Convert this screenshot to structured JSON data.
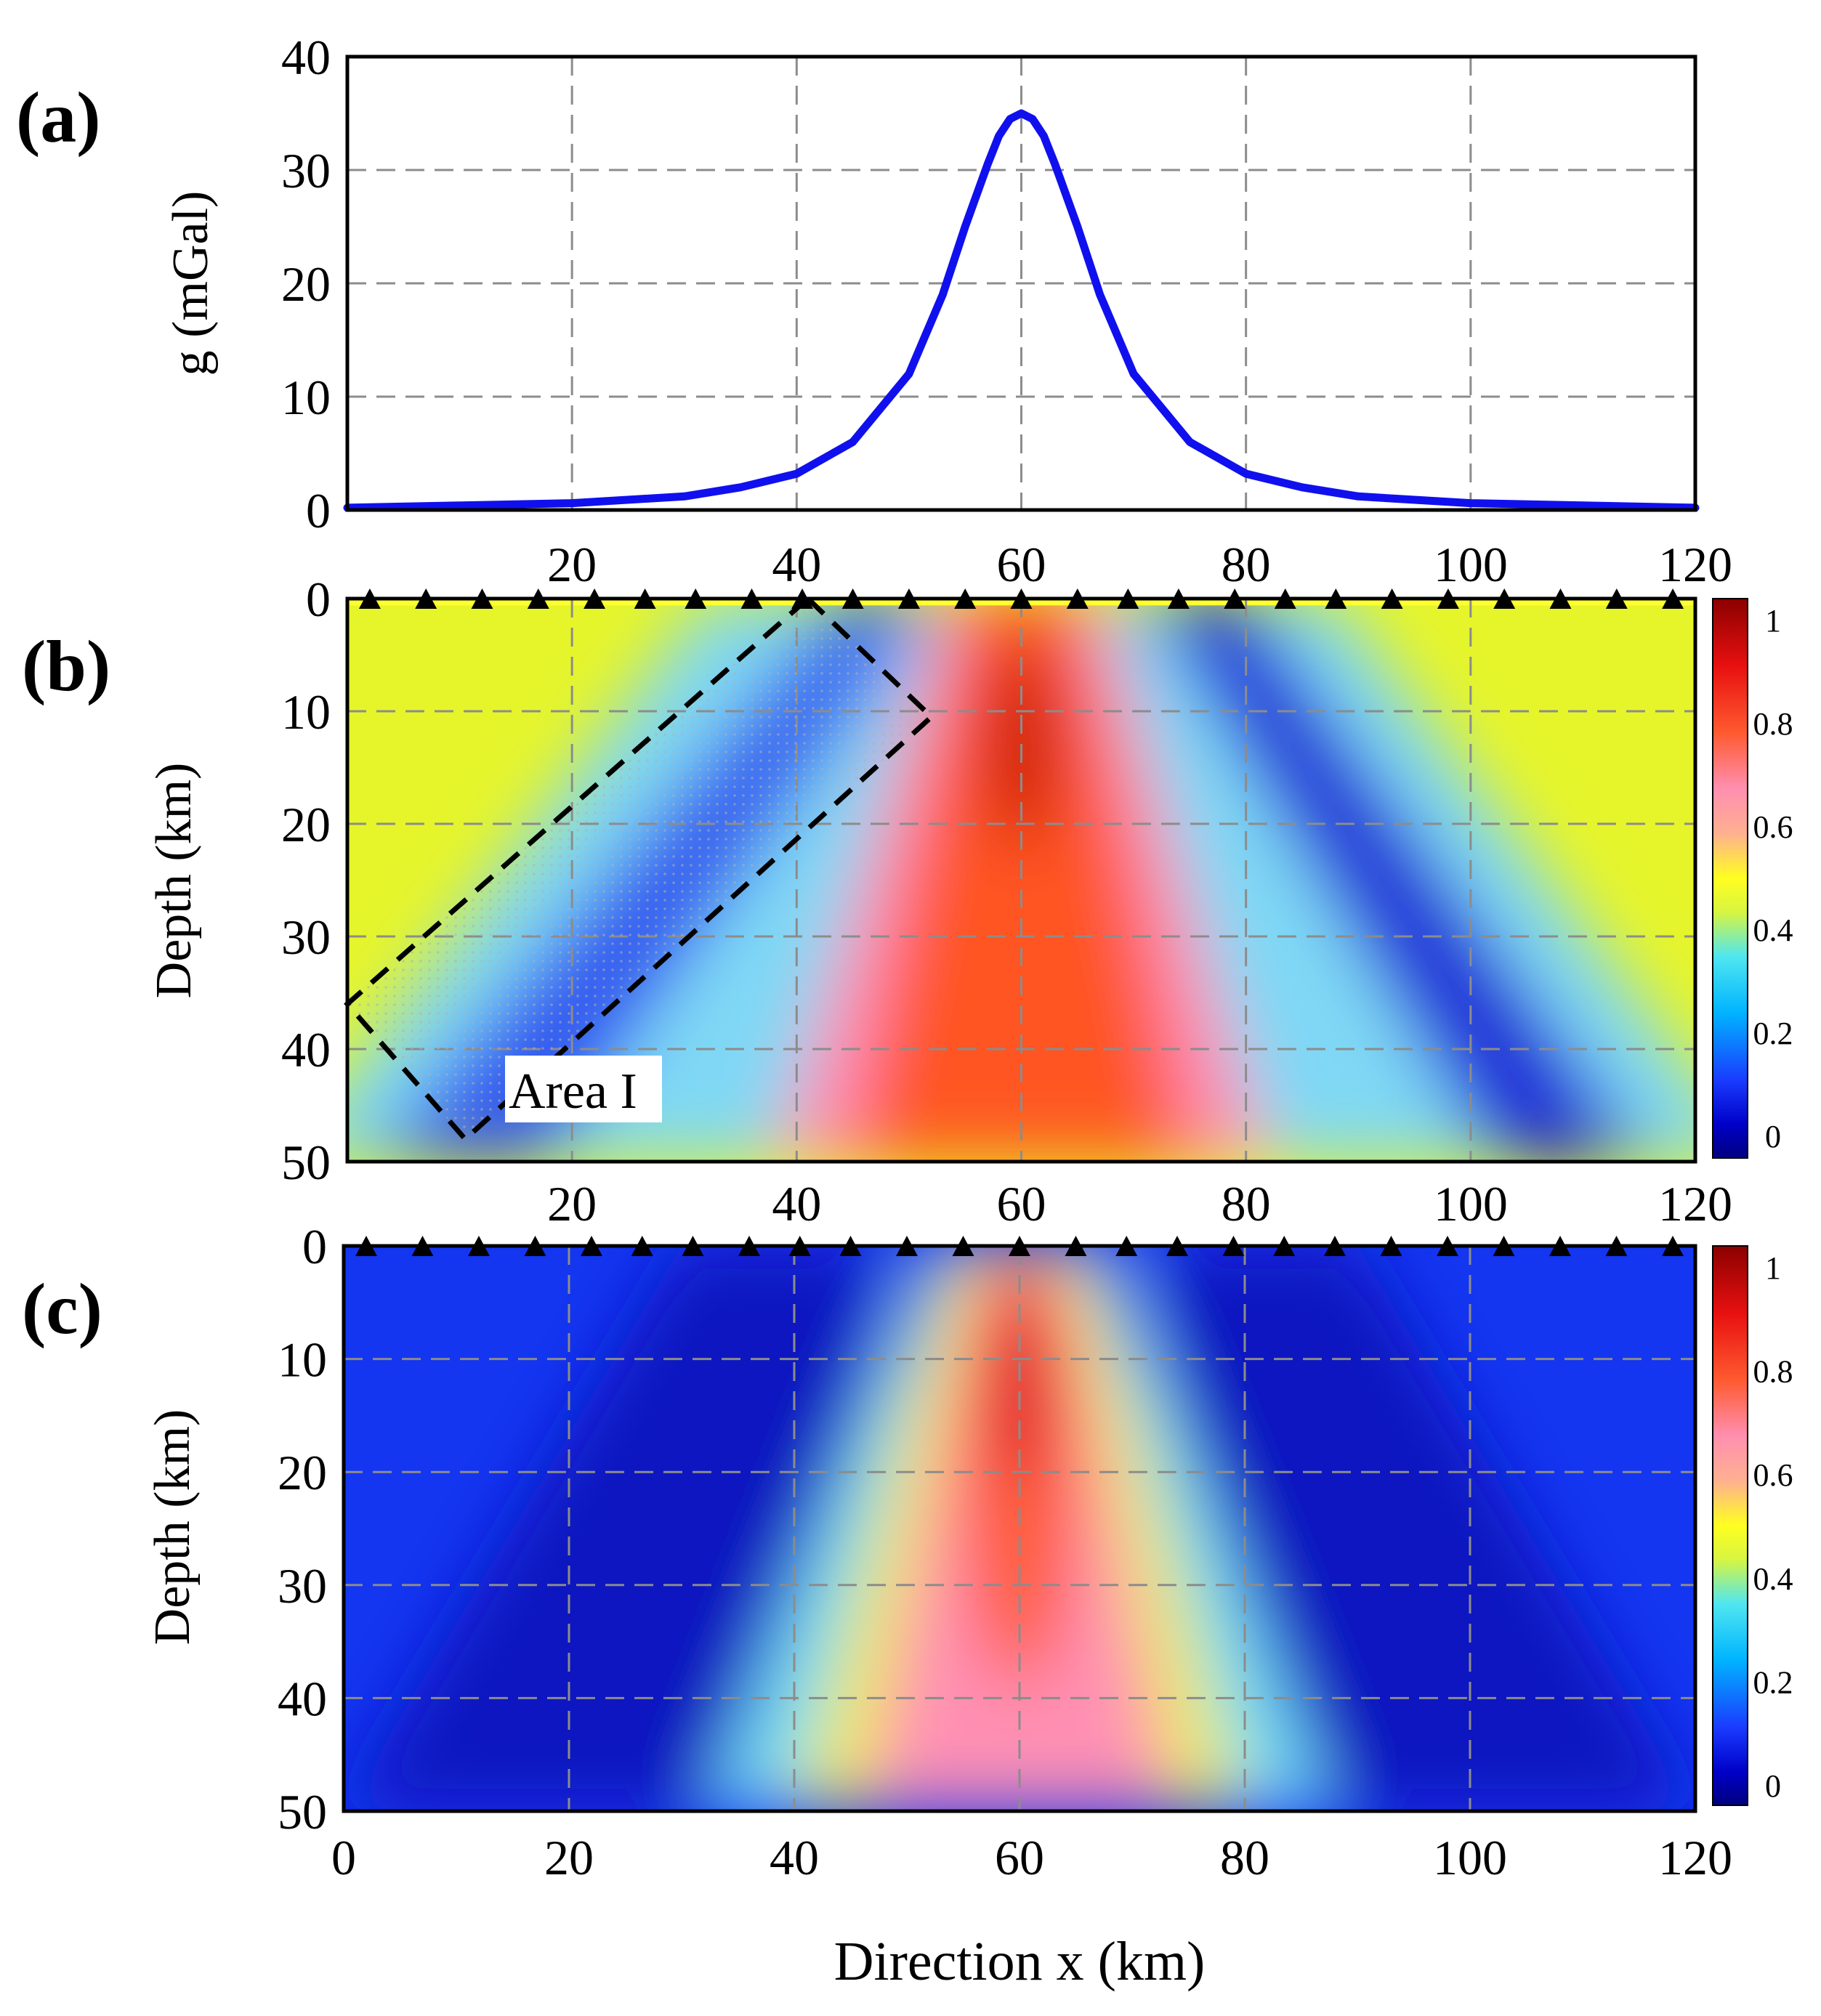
{
  "chart_data": [
    {
      "panel": "(a)",
      "type": "line",
      "ylabel": "g (mGal)",
      "xlim": [
        0,
        120
      ],
      "ylim": [
        0,
        40
      ],
      "xticks": [
        "20",
        "40",
        "60",
        "80",
        "100",
        "120"
      ],
      "yticks": [
        "0",
        "10",
        "20",
        "30",
        "40"
      ],
      "grid": true,
      "series": [
        {
          "name": "g",
          "color": "#1010ee",
          "x": [
            0,
            10,
            20,
            30,
            35,
            40,
            45,
            50,
            53,
            55,
            57,
            58,
            59,
            60,
            61,
            62,
            63,
            65,
            67,
            70,
            75,
            80,
            85,
            90,
            100,
            110,
            120
          ],
          "y": [
            0.2,
            0.4,
            0.6,
            1.2,
            2.0,
            3.2,
            6.0,
            12.0,
            19.0,
            25.0,
            30.5,
            33.0,
            34.5,
            35.0,
            34.5,
            33.0,
            30.5,
            25.0,
            19.0,
            12.0,
            6.0,
            3.2,
            2.0,
            1.2,
            0.6,
            0.4,
            0.2
          ]
        }
      ]
    },
    {
      "panel": "(b)",
      "type": "heatmap",
      "ylabel": "Depth (km)",
      "xlim": [
        0,
        120
      ],
      "ylim": [
        0,
        50
      ],
      "xticks": [
        "20",
        "40",
        "60",
        "80",
        "100",
        "120"
      ],
      "yticks": [
        "0",
        "10",
        "20",
        "30",
        "40",
        "50"
      ],
      "colorbar": {
        "min": 0,
        "max": 1,
        "ticks": [
          "0",
          "0.2",
          "0.4",
          "0.6",
          "0.8",
          "1"
        ]
      },
      "stations_x": [
        2,
        7,
        12,
        17,
        22,
        26.5,
        31,
        36,
        40.5,
        45,
        50,
        55,
        60,
        65,
        69.5,
        74,
        79,
        83.5,
        88,
        93,
        98,
        103,
        108,
        113,
        118
      ],
      "annotation": {
        "label": "Area I",
        "polygon": [
          [
            41,
            0
          ],
          [
            52,
            10.5
          ],
          [
            10.5,
            48
          ],
          [
            0,
            36
          ]
        ]
      }
    },
    {
      "panel": "(c)",
      "type": "heatmap",
      "ylabel": "Depth (km)",
      "xlabel": "Direction x (km)",
      "xlim": [
        0,
        120
      ],
      "ylim": [
        0,
        50
      ],
      "xticks": [
        "0",
        "20",
        "40",
        "60",
        "80",
        "100",
        "120"
      ],
      "yticks": [
        "0",
        "10",
        "20",
        "30",
        "40",
        "50"
      ],
      "colorbar": {
        "min": 0,
        "max": 1,
        "ticks": [
          "0",
          "0.2",
          "0.4",
          "0.6",
          "0.8",
          "1"
        ]
      },
      "stations_x": [
        2,
        7,
        12,
        17,
        22,
        26.5,
        31,
        36,
        40.5,
        45,
        50,
        55,
        60,
        65,
        69.5,
        74,
        79,
        83.5,
        88,
        93,
        98,
        103,
        108,
        113,
        118
      ]
    }
  ]
}
